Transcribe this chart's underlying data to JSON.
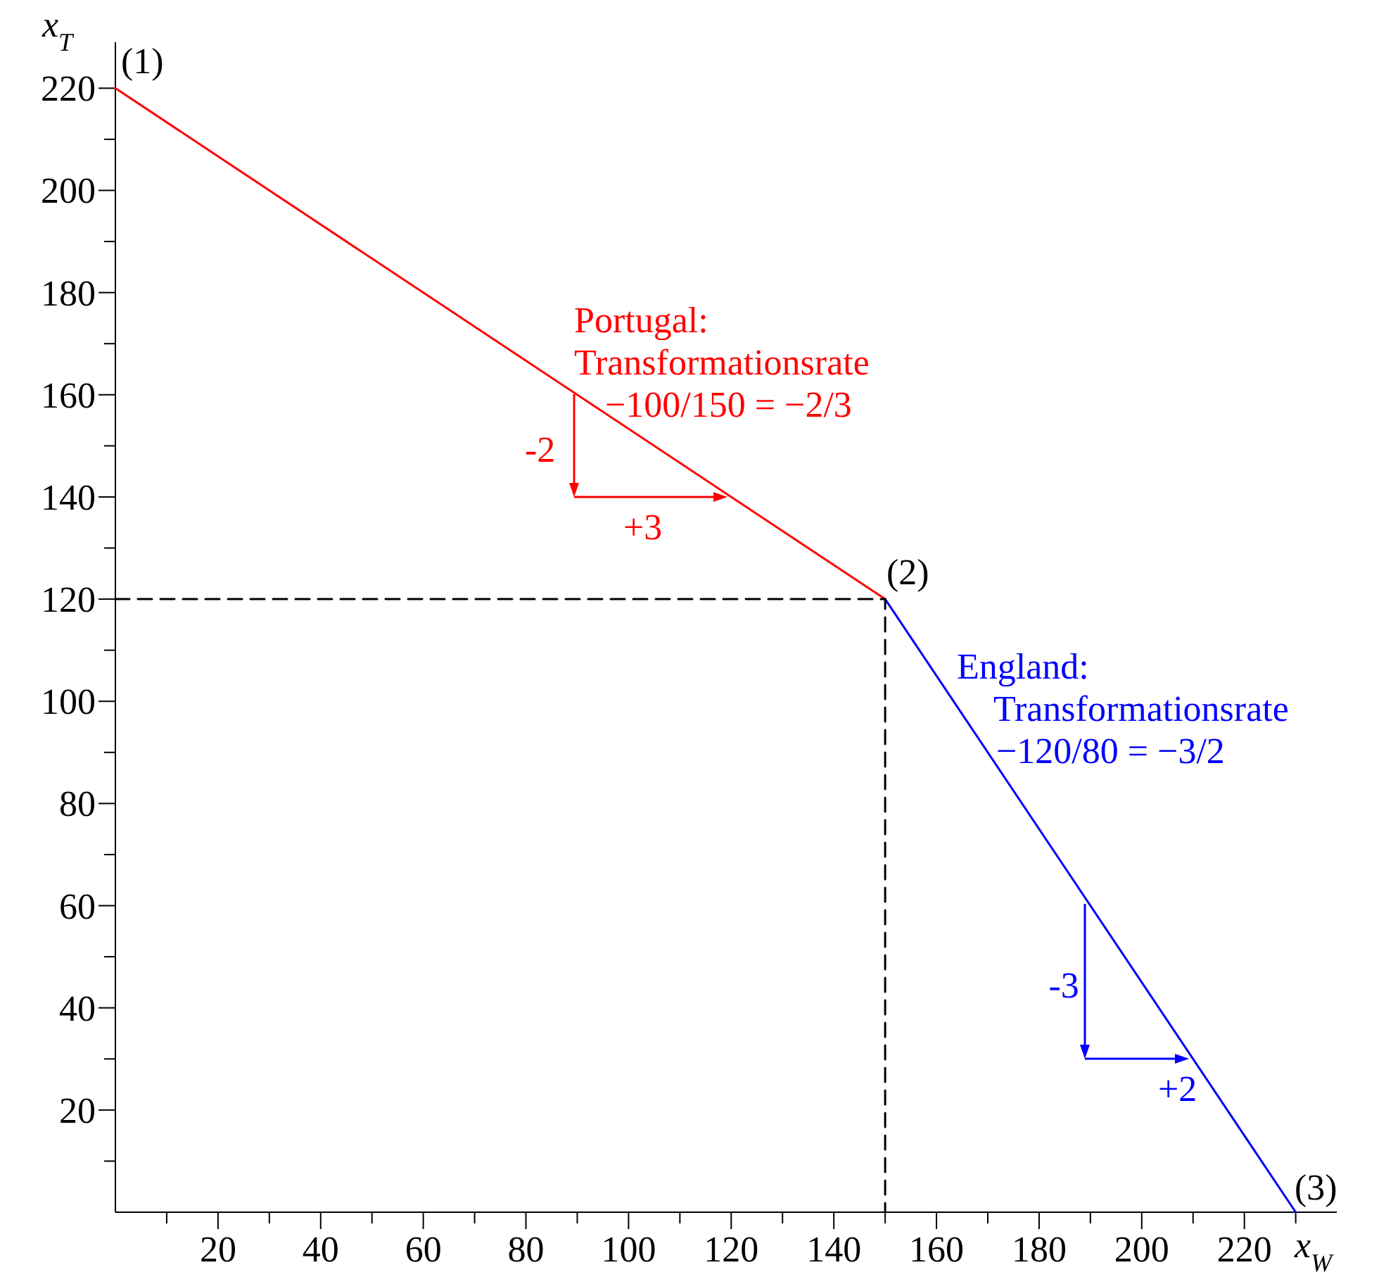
{
  "chart_data": {
    "type": "line",
    "xlabel": "x$_{W}$",
    "ylabel": "x$_{T}$",
    "xlim": [
      0,
      238
    ],
    "ylim": [
      0,
      229
    ],
    "xticks": [
      {
        "value": 10,
        "label": null
      },
      20,
      {
        "value": 30,
        "label": null
      },
      40,
      {
        "value": 50,
        "label": null
      },
      60,
      {
        "value": 70,
        "label": null
      },
      80,
      {
        "value": 90,
        "label": null
      },
      100,
      {
        "value": 110,
        "label": null
      },
      120,
      {
        "value": 130,
        "label": null
      },
      140,
      {
        "value": 150,
        "label": null
      },
      160,
      {
        "value": 170,
        "label": null
      },
      180,
      {
        "value": 190,
        "label": null
      },
      200,
      {
        "value": 210,
        "label": null
      },
      220,
      {
        "value": 230,
        "label": null
      }
    ],
    "yticks": [
      {
        "value": 10,
        "label": null
      },
      20,
      {
        "value": 30,
        "label": null
      },
      40,
      {
        "value": 50,
        "label": null
      },
      60,
      {
        "value": 70,
        "label": null
      },
      80,
      {
        "value": 90,
        "label": null
      },
      100,
      {
        "value": 110,
        "label": null
      },
      120,
      {
        "value": 130,
        "label": null
      },
      140,
      {
        "value": 150,
        "label": null
      },
      160,
      {
        "value": 170,
        "label": null
      },
      180,
      {
        "value": 190,
        "label": null
      },
      200,
      {
        "value": 210,
        "label": null
      },
      220
    ],
    "grid": false,
    "marker": "none",
    "series": [
      {
        "color": "#ff0000",
        "x": [
          0,
          150
        ],
        "values": [
          220,
          120
        ]
      },
      {
        "color": "#0000ff",
        "x": [
          150,
          230
        ],
        "values": [
          120,
          0
        ]
      },
      {
        "color": "#000000",
        "x": [
          0,
          150,
          150
        ],
        "values": [
          120,
          120,
          0
        ],
        "line_style": "dashed"
      }
    ],
    "annotations": [
      "(1)",
      "(2)",
      "(3)",
      "Portugal: Transformationsrate −100/150 = −2/3",
      "-2",
      "+3",
      "England: Transformationsrate −120/80 = −3/2",
      {
        "text": "-3",
        "x": 190,
        "y": 60
      },
      "+2"
    ]
  }
}
